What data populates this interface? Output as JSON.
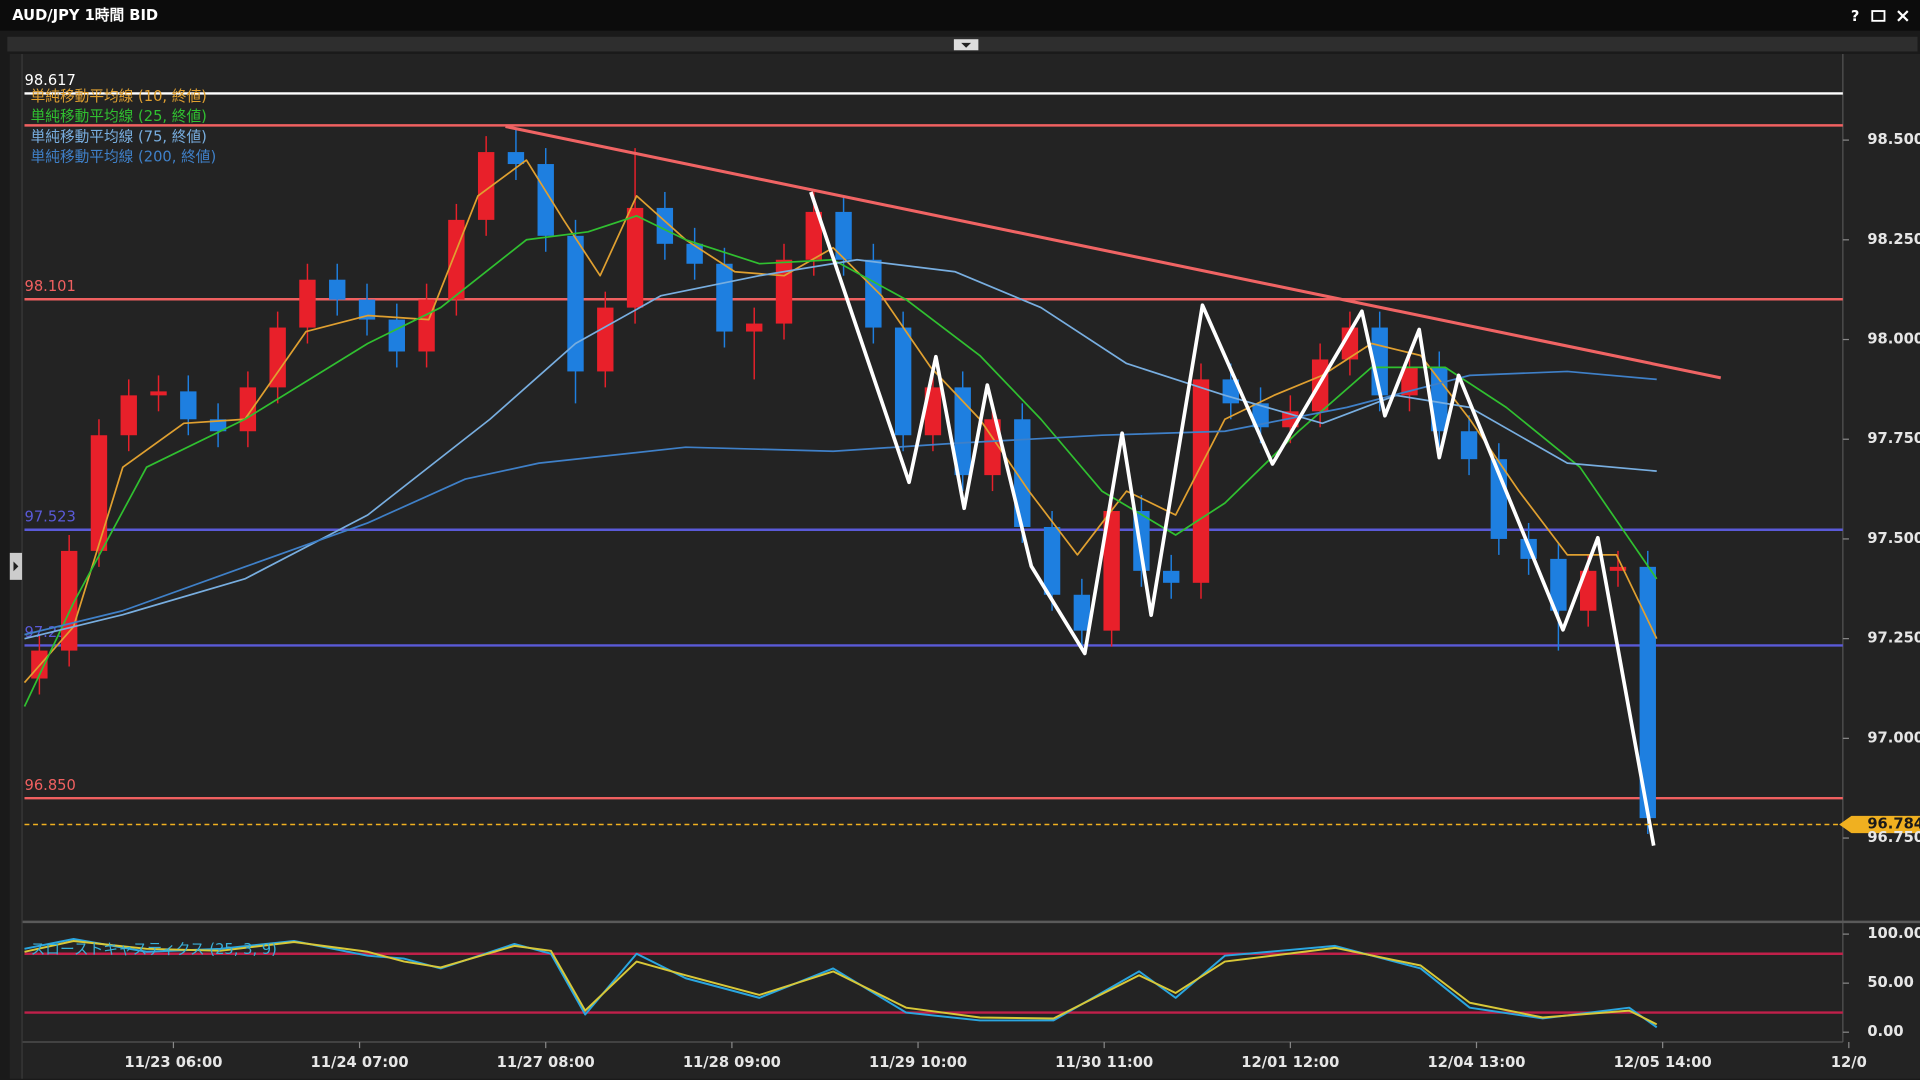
{
  "window": {
    "title": "AUD/JPY 1時間 BID",
    "help": "?"
  },
  "chart_data": [
    {
      "type": "candlestick",
      "x": [
        2,
        6,
        10,
        14,
        18,
        22,
        26,
        30,
        34,
        38,
        42,
        46,
        50,
        54,
        58,
        62,
        66,
        70,
        74,
        78,
        82,
        86,
        90,
        94,
        98,
        102,
        106,
        110,
        114,
        118,
        122,
        126,
        130,
        134,
        138,
        142,
        146,
        150,
        154,
        158,
        162,
        166,
        170,
        174,
        178,
        182,
        186,
        190,
        194,
        198,
        202,
        206,
        210,
        214,
        218
      ],
      "open": [
        97.15,
        97.22,
        97.47,
        97.76,
        97.86,
        97.87,
        97.8,
        97.77,
        97.88,
        98.03,
        98.15,
        98.1,
        98.05,
        97.97,
        98.1,
        98.3,
        98.47,
        98.44,
        98.26,
        97.92,
        98.08,
        98.33,
        98.24,
        98.19,
        98.02,
        98.04,
        98.2,
        98.32,
        98.2,
        98.03,
        97.76,
        97.88,
        97.66,
        97.8,
        97.53,
        97.36,
        97.27,
        97.57,
        97.42,
        97.39,
        97.9,
        97.84,
        97.78,
        97.82,
        97.95,
        98.03,
        97.86,
        97.93,
        97.77,
        97.7,
        97.5,
        97.45,
        97.32,
        97.42,
        97.43
      ],
      "high": [
        97.26,
        97.51,
        97.8,
        97.9,
        97.91,
        97.91,
        97.84,
        97.92,
        98.07,
        98.19,
        98.19,
        98.14,
        98.09,
        98.14,
        98.34,
        98.51,
        98.53,
        98.48,
        98.3,
        98.12,
        98.48,
        98.37,
        98.28,
        98.23,
        98.08,
        98.24,
        98.37,
        98.36,
        98.24,
        98.07,
        97.92,
        97.92,
        97.84,
        97.84,
        97.57,
        97.4,
        97.61,
        97.61,
        97.46,
        97.94,
        97.94,
        97.88,
        97.86,
        97.99,
        98.07,
        98.07,
        97.97,
        97.97,
        97.81,
        97.74,
        97.54,
        97.49,
        97.46,
        97.47,
        97.47
      ],
      "low": [
        97.11,
        97.18,
        97.43,
        97.72,
        97.82,
        97.76,
        97.73,
        97.73,
        97.84,
        97.99,
        98.06,
        98.01,
        97.93,
        97.93,
        98.06,
        98.26,
        98.4,
        98.22,
        97.84,
        97.88,
        98.04,
        98.2,
        98.15,
        97.98,
        97.9,
        98.0,
        98.16,
        98.16,
        97.99,
        97.72,
        97.72,
        97.62,
        97.62,
        97.49,
        97.32,
        97.23,
        97.23,
        97.38,
        97.35,
        97.35,
        97.8,
        97.74,
        97.74,
        97.78,
        97.91,
        97.82,
        97.82,
        97.73,
        97.66,
        97.46,
        97.41,
        97.22,
        97.28,
        97.38,
        96.76
      ],
      "close": [
        97.22,
        97.47,
        97.76,
        97.86,
        97.87,
        97.8,
        97.77,
        97.88,
        98.03,
        98.15,
        98.1,
        98.05,
        97.97,
        98.1,
        98.3,
        98.47,
        98.44,
        98.26,
        97.92,
        98.08,
        98.33,
        98.24,
        98.19,
        98.02,
        98.04,
        98.2,
        98.32,
        98.2,
        98.03,
        97.76,
        97.88,
        97.66,
        97.8,
        97.53,
        97.36,
        97.27,
        97.57,
        97.42,
        97.39,
        97.9,
        97.84,
        97.78,
        97.82,
        97.95,
        98.03,
        97.86,
        97.93,
        97.77,
        97.7,
        97.5,
        97.45,
        97.32,
        97.42,
        97.43,
        96.8
      ],
      "up_color": "#e8202a",
      "down_color": "#1e7fe0",
      "xlim": [
        0,
        244.2
      ],
      "xticks": [
        {
          "value": 20,
          "label": "11/23 06:00"
        },
        {
          "value": 45,
          "label": "11/24 07:00"
        },
        {
          "value": 70,
          "label": "11/27 08:00"
        },
        {
          "value": 95,
          "label": "11/28 09:00"
        },
        {
          "value": 120,
          "label": "11/29 10:00"
        },
        {
          "value": 145,
          "label": "11/30 11:00"
        },
        {
          "value": 170,
          "label": "12/01 12:00"
        },
        {
          "value": 195,
          "label": "12/04 13:00"
        },
        {
          "value": 220,
          "label": "12/05 14:00"
        },
        {
          "value": 245,
          "label": "12/0"
        }
      ],
      "ylim": [
        96.546,
        98.713
      ],
      "yticks": [
        {
          "value": 98.5,
          "label": "98.500"
        },
        {
          "value": 98.25,
          "label": "98.250"
        },
        {
          "value": 98,
          "label": "98.000"
        },
        {
          "value": 97.75,
          "label": "97.750"
        },
        {
          "value": 97.5,
          "label": "97.500"
        },
        {
          "value": 97.25,
          "label": "97.250"
        },
        {
          "value": 97,
          "label": "97.000"
        },
        {
          "value": 96.75,
          "label": "96.750"
        }
      ],
      "series": [
        {
          "name": "単純移動平均線 (10, 終値)",
          "color": "#e0a030",
          "x": [
            0,
            6.6,
            13.2,
            21.4,
            29.6,
            37.8,
            46.1,
            54.3,
            60.9,
            67.4,
            72.4,
            77.3,
            82.2,
            88.8,
            95.4,
            102.0,
            108.6,
            115.1,
            121.7,
            128.3,
            134.9,
            141.4,
            148.0,
            154.6,
            161.2,
            167.8,
            174.3,
            180.9,
            187.5,
            194.1,
            200.7,
            207.2,
            213.8,
            219.2
          ],
          "values": [
            97.14,
            97.28,
            97.68,
            97.79,
            97.8,
            98.02,
            98.06,
            98.05,
            98.36,
            98.45,
            98.3,
            98.16,
            98.36,
            98.25,
            98.17,
            98.16,
            98.23,
            98.11,
            97.93,
            97.8,
            97.62,
            97.46,
            97.62,
            97.56,
            97.8,
            97.86,
            97.91,
            97.99,
            97.96,
            97.8,
            97.62,
            97.46,
            97.46,
            97.25
          ]
        },
        {
          "name": "単純移動平均線 (25, 終値)",
          "color": "#30c030",
          "x": [
            0,
            6.6,
            16.4,
            29.6,
            46.1,
            55.9,
            67.4,
            75.7,
            82.2,
            88.8,
            98.7,
            108.6,
            118.4,
            128.3,
            136.5,
            144.7,
            154.6,
            161.2,
            171.1,
            180.9,
            190.8,
            199.0,
            208.9,
            219.2
          ],
          "values": [
            97.08,
            97.34,
            97.68,
            97.8,
            97.99,
            98.08,
            98.25,
            98.27,
            98.31,
            98.25,
            98.19,
            98.2,
            98.1,
            97.96,
            97.8,
            97.62,
            97.51,
            97.59,
            97.77,
            97.93,
            97.93,
            97.83,
            97.68,
            97.4
          ]
        },
        {
          "name": "単純移動平均線 (75, 終値)",
          "color": "#78aee0",
          "x": [
            0,
            13.2,
            29.6,
            46.1,
            62.5,
            74.0,
            85.5,
            98.7,
            111.8,
            125.0,
            136.5,
            148.0,
            161.2,
            174.3,
            184.2,
            194.1,
            207.2,
            219.2
          ],
          "values": [
            97.25,
            97.31,
            97.4,
            97.56,
            97.8,
            97.99,
            98.11,
            98.16,
            98.2,
            98.17,
            98.08,
            97.94,
            97.86,
            97.79,
            97.86,
            97.83,
            97.69,
            97.67
          ]
        },
        {
          "name": "単純移動平均線 (200, 終値)",
          "color": "#3f80c8",
          "x": [
            0,
            13.2,
            29.6,
            46.1,
            59.2,
            69.1,
            88.8,
            108.6,
            125.0,
            144.7,
            161.2,
            177.6,
            194.1,
            207.2,
            219.2
          ],
          "values": [
            97.26,
            97.32,
            97.43,
            97.54,
            97.65,
            97.69,
            97.73,
            97.72,
            97.74,
            97.76,
            97.77,
            97.83,
            97.91,
            97.92,
            97.9
          ]
        }
      ],
      "levels": [
        {
          "value": 98.617,
          "label": "98.617",
          "color": "#ffffff"
        },
        {
          "value": 98.537,
          "color": "#f06060"
        },
        {
          "value": 98.101,
          "label": "98.101",
          "color": "#f06060"
        },
        {
          "value": 97.523,
          "label": "97.523",
          "color": "#5a5ad8"
        },
        {
          "value": 97.233,
          "label": "97.233",
          "color": "#5a5ad8"
        },
        {
          "value": 96.85,
          "label": "96.850",
          "color": "#f06060"
        }
      ],
      "trendline": {
        "x": [
          64.6,
          227.8
        ],
        "values": [
          98.534,
          97.904
        ],
        "color": "#f06464"
      },
      "zigzag": {
        "x": [
          105.6,
          118.8,
          122.4,
          126.2,
          129.3,
          135.2,
          142.4,
          147.4,
          151.3,
          158.2,
          167.6,
          179.6,
          182.7,
          187.3,
          190.0,
          192.6,
          206.6,
          211.3,
          218.8
        ],
        "values": [
          98.37,
          97.642,
          97.957,
          97.577,
          97.886,
          97.432,
          97.213,
          97.765,
          97.309,
          98.086,
          97.688,
          98.071,
          97.809,
          98.025,
          97.704,
          97.91,
          97.272,
          97.503,
          96.731
        ],
        "color": "#ffffff"
      },
      "current_price": {
        "value": 96.784,
        "color": "#f0b020"
      }
    },
    {
      "type": "line",
      "title": "スローストキャスティクス (25, 3, 9)",
      "xlim": [
        0,
        244.2
      ],
      "ylim": [
        -10,
        108.75
      ],
      "yticks": [
        {
          "value": 100,
          "label": "100.00"
        },
        {
          "value": 50,
          "label": "50.00"
        },
        {
          "value": 0,
          "label": "0.00"
        }
      ],
      "levels": [
        {
          "value": 80,
          "color": "#c0204a"
        },
        {
          "value": 20,
          "color": "#c0204a"
        }
      ],
      "series": [
        {
          "color": "#2aa6e0",
          "x": [
            0,
            6.6,
            16.4,
            26.3,
            36.2,
            46.1,
            51.0,
            55.9,
            65.8,
            70.7,
            75.3,
            82.2,
            88.8,
            98.7,
            108.6,
            118.4,
            128.3,
            138.2,
            149.7,
            154.6,
            161.2,
            176.0,
            187.5,
            194.1,
            203.9,
            215.5,
            219.2
          ],
          "values": [
            85,
            95,
            82,
            85,
            93,
            78,
            75,
            65,
            90,
            80,
            18,
            80,
            55,
            35,
            65,
            20,
            12,
            12,
            62,
            35,
            78,
            88,
            65,
            25,
            14,
            25,
            5
          ]
        },
        {
          "color": "#d8c838",
          "x": [
            0,
            6.6,
            16.4,
            26.3,
            36.2,
            46.1,
            51.0,
            55.9,
            65.8,
            70.7,
            75.3,
            82.2,
            88.8,
            98.7,
            108.6,
            118.4,
            128.3,
            138.2,
            149.7,
            154.6,
            161.2,
            176.0,
            187.5,
            194.1,
            203.9,
            215.5,
            219.2
          ],
          "values": [
            82,
            93,
            85,
            83,
            92,
            82,
            72,
            66,
            88,
            83,
            22,
            72,
            58,
            38,
            62,
            25,
            15,
            14,
            58,
            40,
            72,
            86,
            68,
            30,
            15,
            22,
            8
          ]
        }
      ]
    }
  ]
}
